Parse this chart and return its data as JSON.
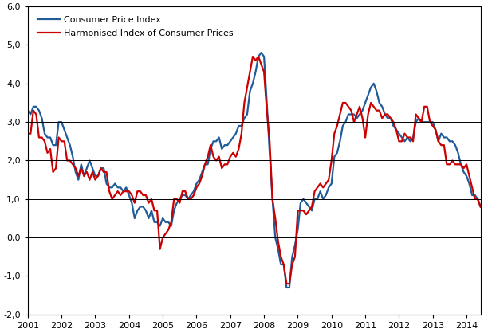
{
  "cpi_label": "Consumer Price Index",
  "hicp_label": "Harmonised Index of Consumer Prices",
  "cpi_color": "#1F5C99",
  "hicp_color": "#CC0000",
  "background_color": "#FFFFFF",
  "grid_color": "#000000",
  "ylim": [
    -2.0,
    6.0
  ],
  "yticks": [
    -2.0,
    -1.0,
    0.0,
    1.0,
    2.0,
    3.0,
    4.0,
    5.0,
    6.0
  ],
  "xlim_start": 2001.0,
  "xlim_end": 2014.42,
  "cpi": [
    3.3,
    3.2,
    3.4,
    3.4,
    3.3,
    3.1,
    2.7,
    2.6,
    2.6,
    2.4,
    2.4,
    3.0,
    3.0,
    2.8,
    2.6,
    2.4,
    2.1,
    1.7,
    1.5,
    1.9,
    1.6,
    1.8,
    2.0,
    1.8,
    1.6,
    1.6,
    1.8,
    1.8,
    1.4,
    1.3,
    1.3,
    1.4,
    1.3,
    1.3,
    1.2,
    1.3,
    1.1,
    0.9,
    0.5,
    0.7,
    0.8,
    0.8,
    0.7,
    0.5,
    0.7,
    0.4,
    0.4,
    0.3,
    0.5,
    0.4,
    0.4,
    0.3,
    0.7,
    0.9,
    1.0,
    1.1,
    1.1,
    1.0,
    1.1,
    1.2,
    1.4,
    1.5,
    1.7,
    1.9,
    1.9,
    2.3,
    2.5,
    2.5,
    2.6,
    2.3,
    2.4,
    2.4,
    2.5,
    2.6,
    2.7,
    2.9,
    2.9,
    3.1,
    3.2,
    3.8,
    4.0,
    4.3,
    4.7,
    4.8,
    4.7,
    3.5,
    2.2,
    1.0,
    0.0,
    -0.3,
    -0.7,
    -0.7,
    -1.3,
    -1.3,
    -0.5,
    -0.2,
    0.2,
    0.9,
    1.0,
    0.9,
    0.8,
    0.7,
    1.0,
    1.0,
    1.2,
    1.0,
    1.1,
    1.3,
    1.4,
    2.1,
    2.2,
    2.5,
    2.9,
    3.0,
    3.2,
    3.2,
    3.2,
    3.1,
    3.2,
    3.3,
    3.5,
    3.7,
    3.9,
    4.0,
    3.8,
    3.5,
    3.4,
    3.2,
    3.1,
    3.1,
    2.9,
    2.8,
    2.7,
    2.6,
    2.5,
    2.6,
    2.5,
    2.6,
    3.0,
    3.1,
    3.0,
    3.0,
    3.0,
    3.0,
    3.0,
    2.8,
    2.5,
    2.7,
    2.6,
    2.6,
    2.5,
    2.5,
    2.4,
    2.2,
    1.9,
    1.7,
    1.6,
    1.4,
    1.1,
    1.1,
    1.0,
    0.8
  ],
  "hicp": [
    2.7,
    2.7,
    3.3,
    3.2,
    2.6,
    2.6,
    2.5,
    2.2,
    2.3,
    1.7,
    1.8,
    2.6,
    2.5,
    2.5,
    2.0,
    2.0,
    1.9,
    1.8,
    1.6,
    1.8,
    1.6,
    1.7,
    1.5,
    1.7,
    1.5,
    1.6,
    1.8,
    1.7,
    1.7,
    1.2,
    1.0,
    1.1,
    1.2,
    1.1,
    1.2,
    1.2,
    1.2,
    1.1,
    0.9,
    1.2,
    1.2,
    1.1,
    1.1,
    0.9,
    1.0,
    0.7,
    0.7,
    -0.3,
    0.0,
    0.1,
    0.2,
    0.4,
    1.0,
    1.0,
    0.9,
    1.2,
    1.2,
    1.0,
    1.0,
    1.1,
    1.3,
    1.4,
    1.6,
    1.9,
    2.1,
    2.4,
    2.1,
    2.0,
    2.1,
    1.8,
    1.9,
    1.9,
    2.1,
    2.2,
    2.1,
    2.3,
    2.7,
    3.5,
    3.9,
    4.3,
    4.7,
    4.6,
    4.7,
    4.5,
    4.3,
    3.3,
    2.5,
    1.0,
    0.5,
    -0.1,
    -0.5,
    -0.7,
    -1.2,
    -1.2,
    -0.7,
    -0.5,
    0.7,
    0.7,
    0.7,
    0.6,
    0.7,
    0.8,
    1.2,
    1.3,
    1.4,
    1.3,
    1.4,
    1.5,
    2.0,
    2.7,
    2.9,
    3.2,
    3.5,
    3.5,
    3.4,
    3.3,
    3.0,
    3.2,
    3.4,
    3.1,
    2.6,
    3.2,
    3.5,
    3.4,
    3.3,
    3.3,
    3.1,
    3.2,
    3.2,
    3.1,
    3.0,
    2.8,
    2.5,
    2.5,
    2.7,
    2.6,
    2.6,
    2.5,
    3.2,
    3.1,
    3.0,
    3.4,
    3.4,
    3.0,
    2.9,
    2.8,
    2.5,
    2.4,
    2.4,
    1.9,
    1.9,
    2.0,
    1.9,
    1.9,
    1.9,
    1.8,
    1.9,
    1.6,
    1.3,
    1.0,
    1.0,
    0.8
  ]
}
